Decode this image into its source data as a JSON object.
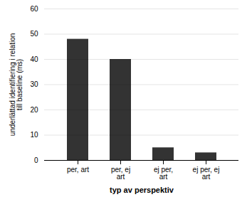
{
  "chart_data": {
    "type": "bar",
    "categories": [
      "per, art",
      "per, ej\nart",
      "ej per,\nart",
      "ej per, ej\nart"
    ],
    "values": [
      48,
      40,
      5,
      3
    ],
    "color": "#333333",
    "xlabel": "typ av perspektiv",
    "ylabel": "underlättad identifiering i relation\ntill baseline (ms)",
    "ylim": [
      0,
      60
    ],
    "yticks": [
      0,
      10,
      20,
      30,
      40,
      50,
      60
    ],
    "grid": true
  }
}
